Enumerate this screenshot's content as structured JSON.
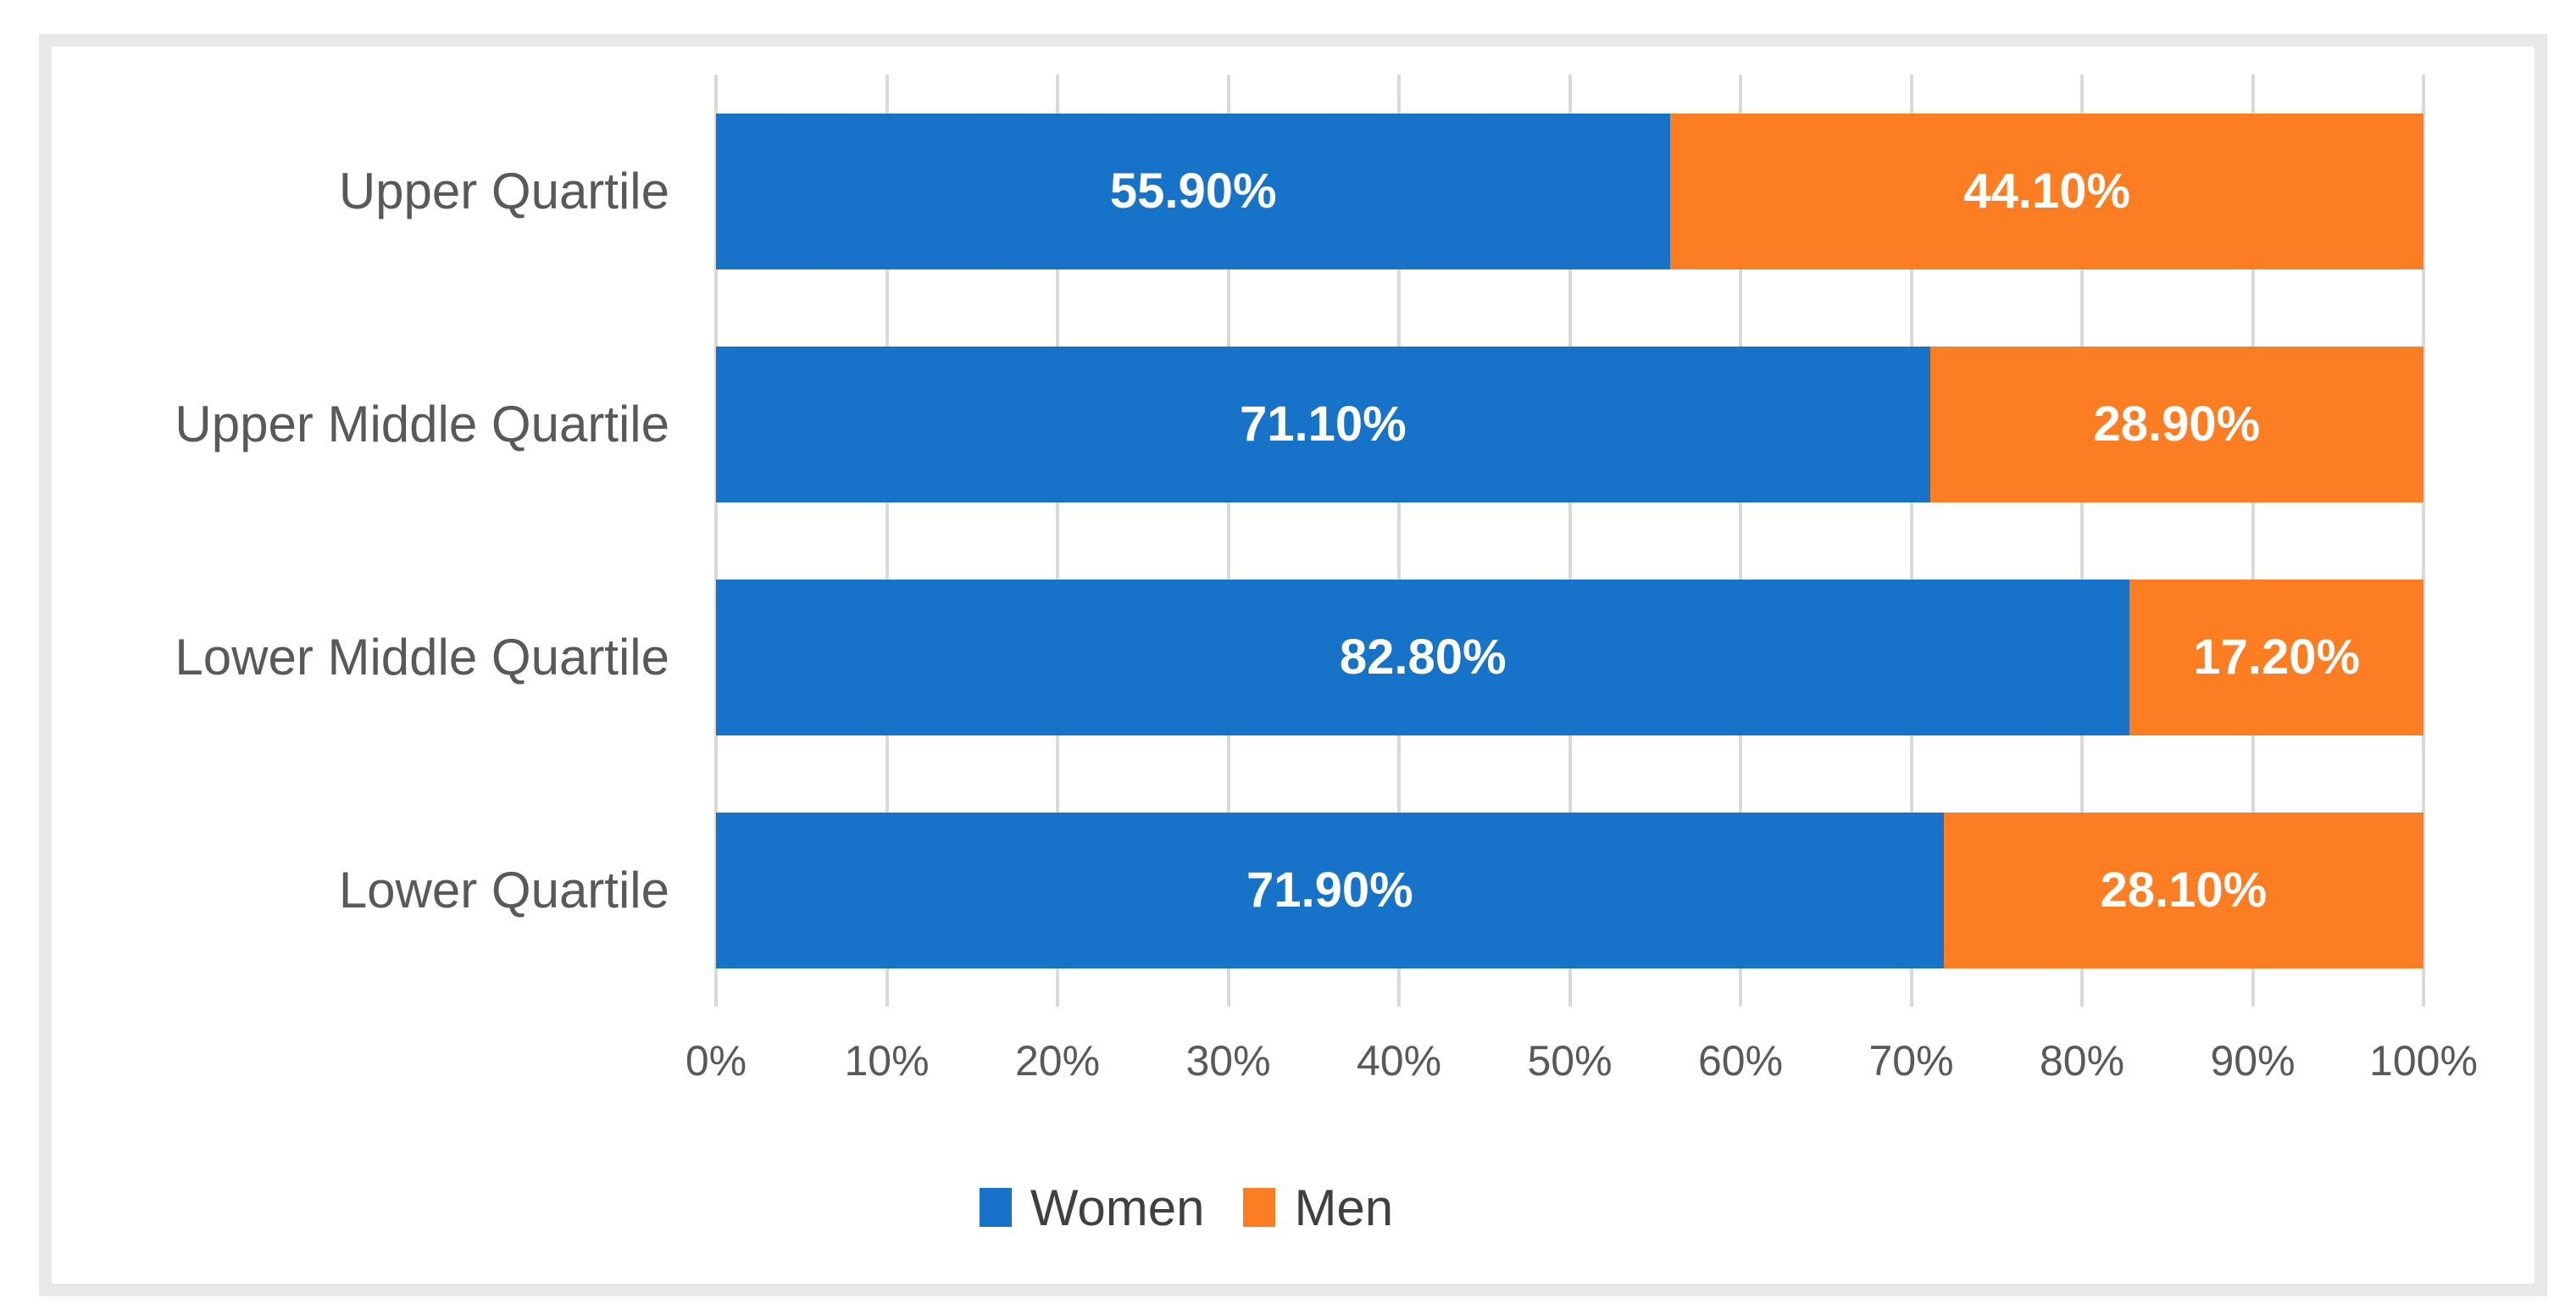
{
  "chart_data": {
    "type": "bar",
    "orientation": "horizontal",
    "stacked": true,
    "title": "",
    "xlabel": "",
    "ylabel": "",
    "categories": [
      "Upper Quartile",
      "Upper Middle Quartile",
      "Lower Middle Quartile",
      "Lower Quartile"
    ],
    "series": [
      {
        "name": "Women",
        "color": "#1773C8",
        "values": [
          55.9,
          71.1,
          82.8,
          71.9
        ],
        "labels": [
          "55.90%",
          "71.10%",
          "82.80%",
          "71.90%"
        ]
      },
      {
        "name": "Men",
        "color": "#FD7D23",
        "values": [
          44.1,
          28.9,
          17.2,
          28.1
        ],
        "labels": [
          "44.10%",
          "28.90%",
          "17.20%",
          "28.10%"
        ]
      }
    ],
    "x_axis": {
      "min": 0,
      "max": 100,
      "tick_step": 10,
      "ticks": [
        "0%",
        "10%",
        "20%",
        "30%",
        "40%",
        "50%",
        "60%",
        "70%",
        "80%",
        "90%",
        "100%"
      ]
    },
    "grid": true,
    "gridline_color": "#D9D9D9",
    "axis_label_color": "#595959",
    "data_label_color": "#FFFFFF",
    "legend": {
      "position": "bottom",
      "entries": [
        {
          "label": "Women",
          "color": "#1773C8"
        },
        {
          "label": "Men",
          "color": "#FD7D23"
        }
      ]
    },
    "frame_border_color": "#E8E8E8"
  }
}
